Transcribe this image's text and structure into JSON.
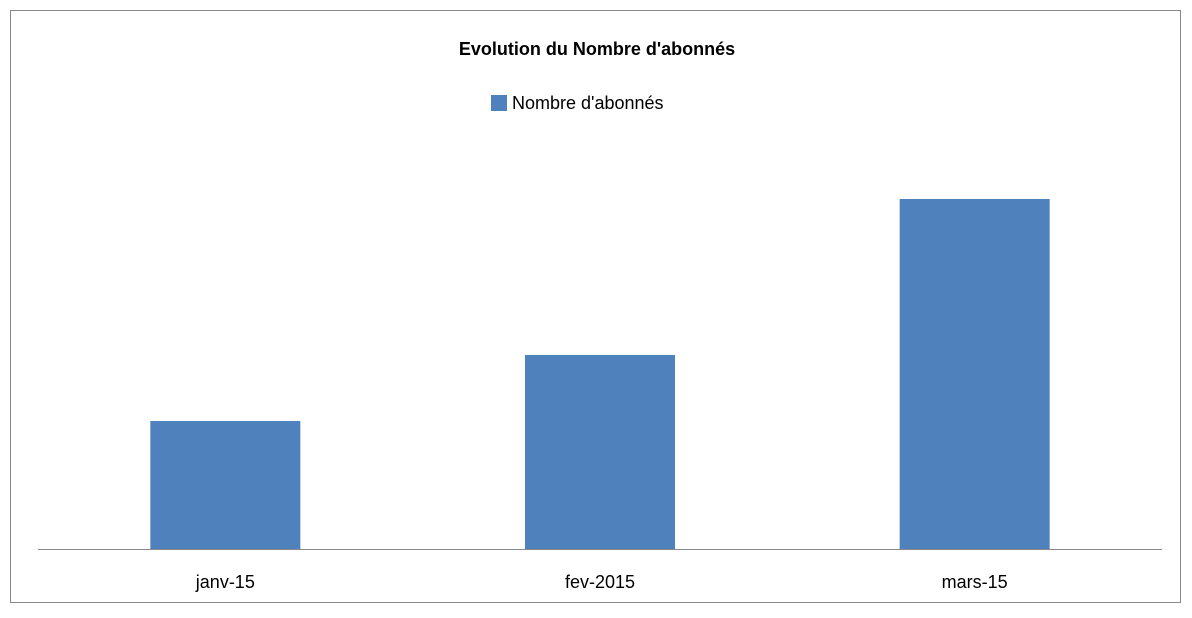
{
  "chart_data": {
    "type": "bar",
    "title": "Evolution du Nombre d'abonnés",
    "categories": [
      "janv-15",
      "fev-2015",
      "mars-15"
    ],
    "series": [
      {
        "name": "Nombre d'abonnés",
        "color": "#4f81bd",
        "values": [
          128,
          194,
          350
        ]
      }
    ],
    "ylim": [
      0,
      400
    ],
    "legend": "top"
  }
}
